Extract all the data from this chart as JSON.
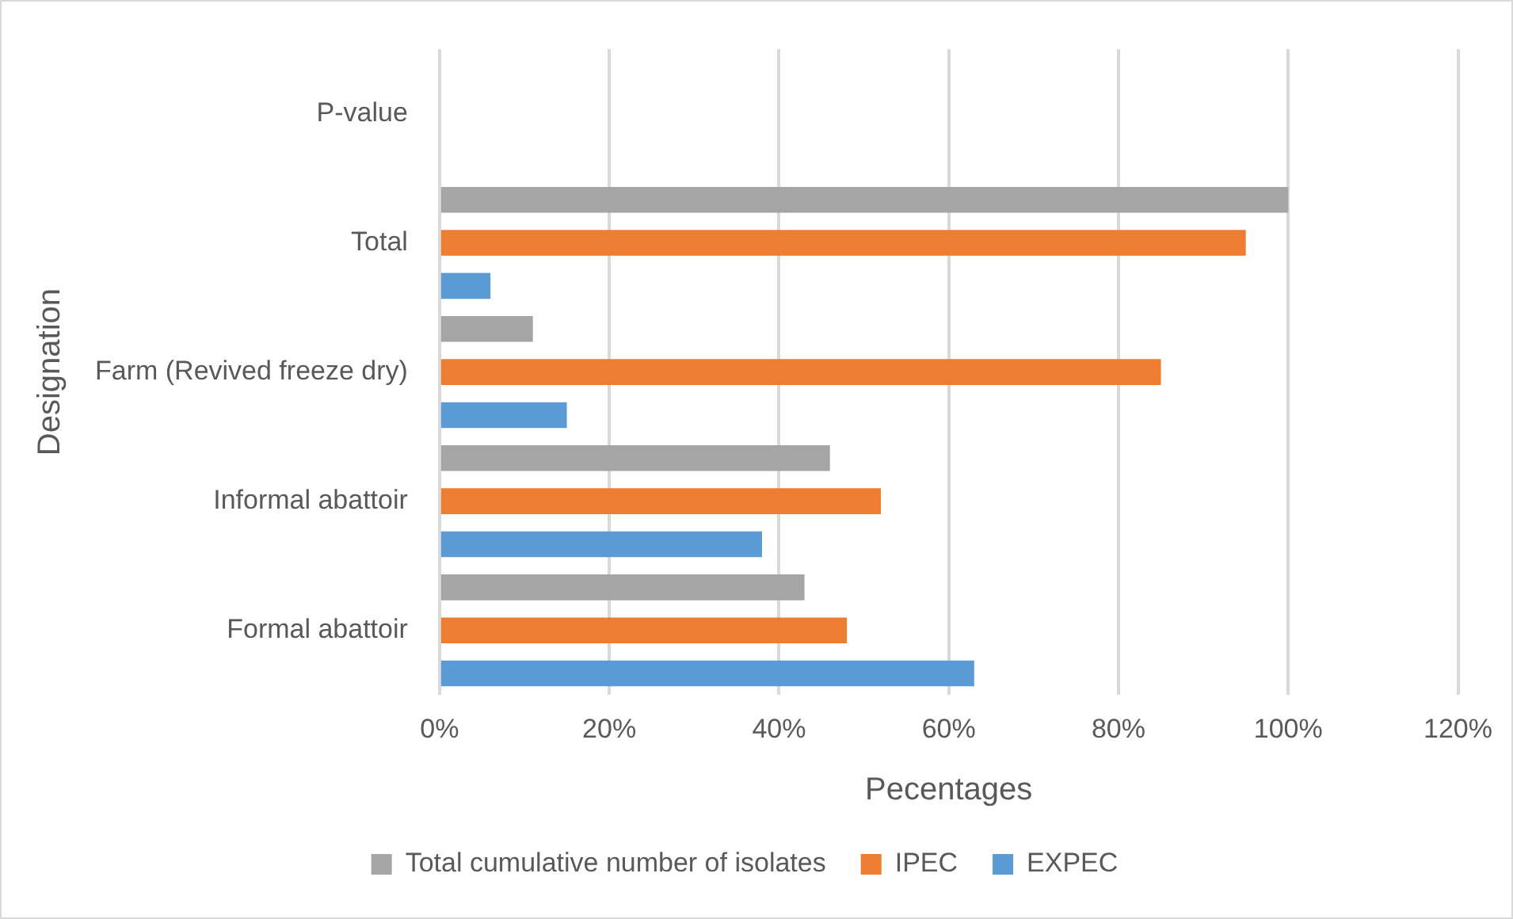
{
  "chart_data": {
    "type": "bar",
    "orientation": "horizontal",
    "xlabel": "Pecentages",
    "ylabel": "Designation",
    "categories": [
      "P-value",
      "Total",
      "Farm (Revived freeze dry)",
      "Informal abattoir",
      "Formal abattoir"
    ],
    "series": [
      {
        "name": "Total cumulative number of isolates",
        "color": "#a5a5a5",
        "values": [
          null,
          100,
          11,
          46,
          43
        ]
      },
      {
        "name": "IPEC",
        "color": "#ed7d31",
        "values": [
          null,
          95,
          85,
          52,
          48
        ]
      },
      {
        "name": "EXPEC",
        "color": "#5b9bd5",
        "values": [
          null,
          6,
          15,
          38,
          63
        ]
      }
    ],
    "xlim": [
      0,
      120
    ],
    "xticks": [
      {
        "value": 0,
        "label": "0%"
      },
      {
        "value": 20,
        "label": "20%"
      },
      {
        "value": 40,
        "label": "40%"
      },
      {
        "value": 60,
        "label": "60%"
      },
      {
        "value": 80,
        "label": "80%"
      },
      {
        "value": 100,
        "label": "100%"
      },
      {
        "value": 120,
        "label": "120%"
      }
    ],
    "grid": "x",
    "legend": "bottom"
  }
}
